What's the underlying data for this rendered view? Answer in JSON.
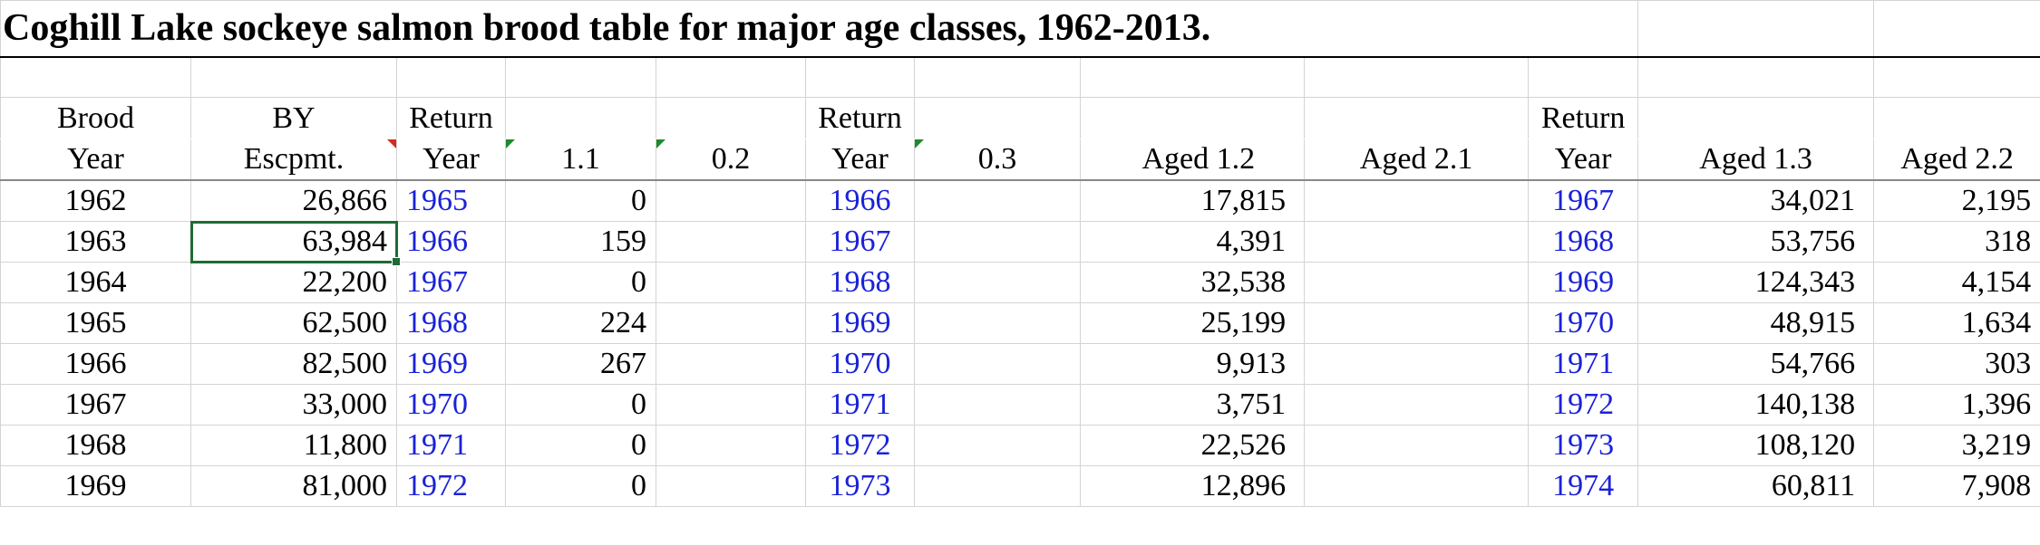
{
  "title": "Coghill Lake sockeye salmon brood table for major age classes, 1962-2013.",
  "header_row1": {
    "brood": "Brood",
    "by": "BY",
    "return1": "Return",
    "return2": "Return",
    "return3": "Return"
  },
  "header_row2": {
    "year": "Year",
    "escpmt": "Escpmt.",
    "ret_year1": "Year",
    "age_1_1": "1.1",
    "age_0_2": "0.2",
    "ret_year2": "Year",
    "age_0_3": "0.3",
    "aged_1_2": "Aged 1.2",
    "aged_2_1": "Aged 2.1",
    "ret_year3": "Year",
    "aged_1_3": "Aged 1.3",
    "aged_2_2": "Aged 2.2"
  },
  "rows": [
    {
      "brood_year": "1962",
      "escpmt": "26,866",
      "return_year_1": "1965",
      "age_1_1": "0",
      "age_0_2": "",
      "return_year_2": "1966",
      "age_0_3": "",
      "aged_1_2": "17,815",
      "aged_2_1": "",
      "return_year_3": "1967",
      "aged_1_3": "34,021",
      "aged_2_2": "2,195"
    },
    {
      "brood_year": "1963",
      "escpmt": "63,984",
      "return_year_1": "1966",
      "age_1_1": "159",
      "age_0_2": "",
      "return_year_2": "1967",
      "age_0_3": "",
      "aged_1_2": "4,391",
      "aged_2_1": "",
      "return_year_3": "1968",
      "aged_1_3": "53,756",
      "aged_2_2": "318"
    },
    {
      "brood_year": "1964",
      "escpmt": "22,200",
      "return_year_1": "1967",
      "age_1_1": "0",
      "age_0_2": "",
      "return_year_2": "1968",
      "age_0_3": "",
      "aged_1_2": "32,538",
      "aged_2_1": "",
      "return_year_3": "1969",
      "aged_1_3": "124,343",
      "aged_2_2": "4,154"
    },
    {
      "brood_year": "1965",
      "escpmt": "62,500",
      "return_year_1": "1968",
      "age_1_1": "224",
      "age_0_2": "",
      "return_year_2": "1969",
      "age_0_3": "",
      "aged_1_2": "25,199",
      "aged_2_1": "",
      "return_year_3": "1970",
      "aged_1_3": "48,915",
      "aged_2_2": "1,634"
    },
    {
      "brood_year": "1966",
      "escpmt": "82,500",
      "return_year_1": "1969",
      "age_1_1": "267",
      "age_0_2": "",
      "return_year_2": "1970",
      "age_0_3": "",
      "aged_1_2": "9,913",
      "aged_2_1": "",
      "return_year_3": "1971",
      "aged_1_3": "54,766",
      "aged_2_2": "303"
    },
    {
      "brood_year": "1967",
      "escpmt": "33,000",
      "return_year_1": "1970",
      "age_1_1": "0",
      "age_0_2": "",
      "return_year_2": "1971",
      "age_0_3": "",
      "aged_1_2": "3,751",
      "aged_2_1": "",
      "return_year_3": "1972",
      "aged_1_3": "140,138",
      "aged_2_2": "1,396"
    },
    {
      "brood_year": "1968",
      "escpmt": "11,800",
      "return_year_1": "1971",
      "age_1_1": "0",
      "age_0_2": "",
      "return_year_2": "1972",
      "age_0_3": "",
      "aged_1_2": "22,526",
      "aged_2_1": "",
      "return_year_3": "1973",
      "aged_1_3": "108,120",
      "aged_2_2": "3,219"
    },
    {
      "brood_year": "1969",
      "escpmt": "81,000",
      "return_year_1": "1972",
      "age_1_1": "0",
      "age_0_2": "",
      "return_year_2": "1973",
      "age_0_3": "",
      "aged_1_2": "12,896",
      "aged_2_1": "",
      "return_year_3": "1974",
      "aged_1_3": "60,811",
      "aged_2_2": "7,908"
    }
  ],
  "colors": {
    "return_year_text": "#1a22d8",
    "selection": "#1f6b35",
    "comment_marker": "#d62a1e",
    "error_marker": "#1c8a2e",
    "gridline": "#d4d4d4"
  },
  "selected_cell": {
    "row": 2,
    "column": "BY Escpmt."
  }
}
